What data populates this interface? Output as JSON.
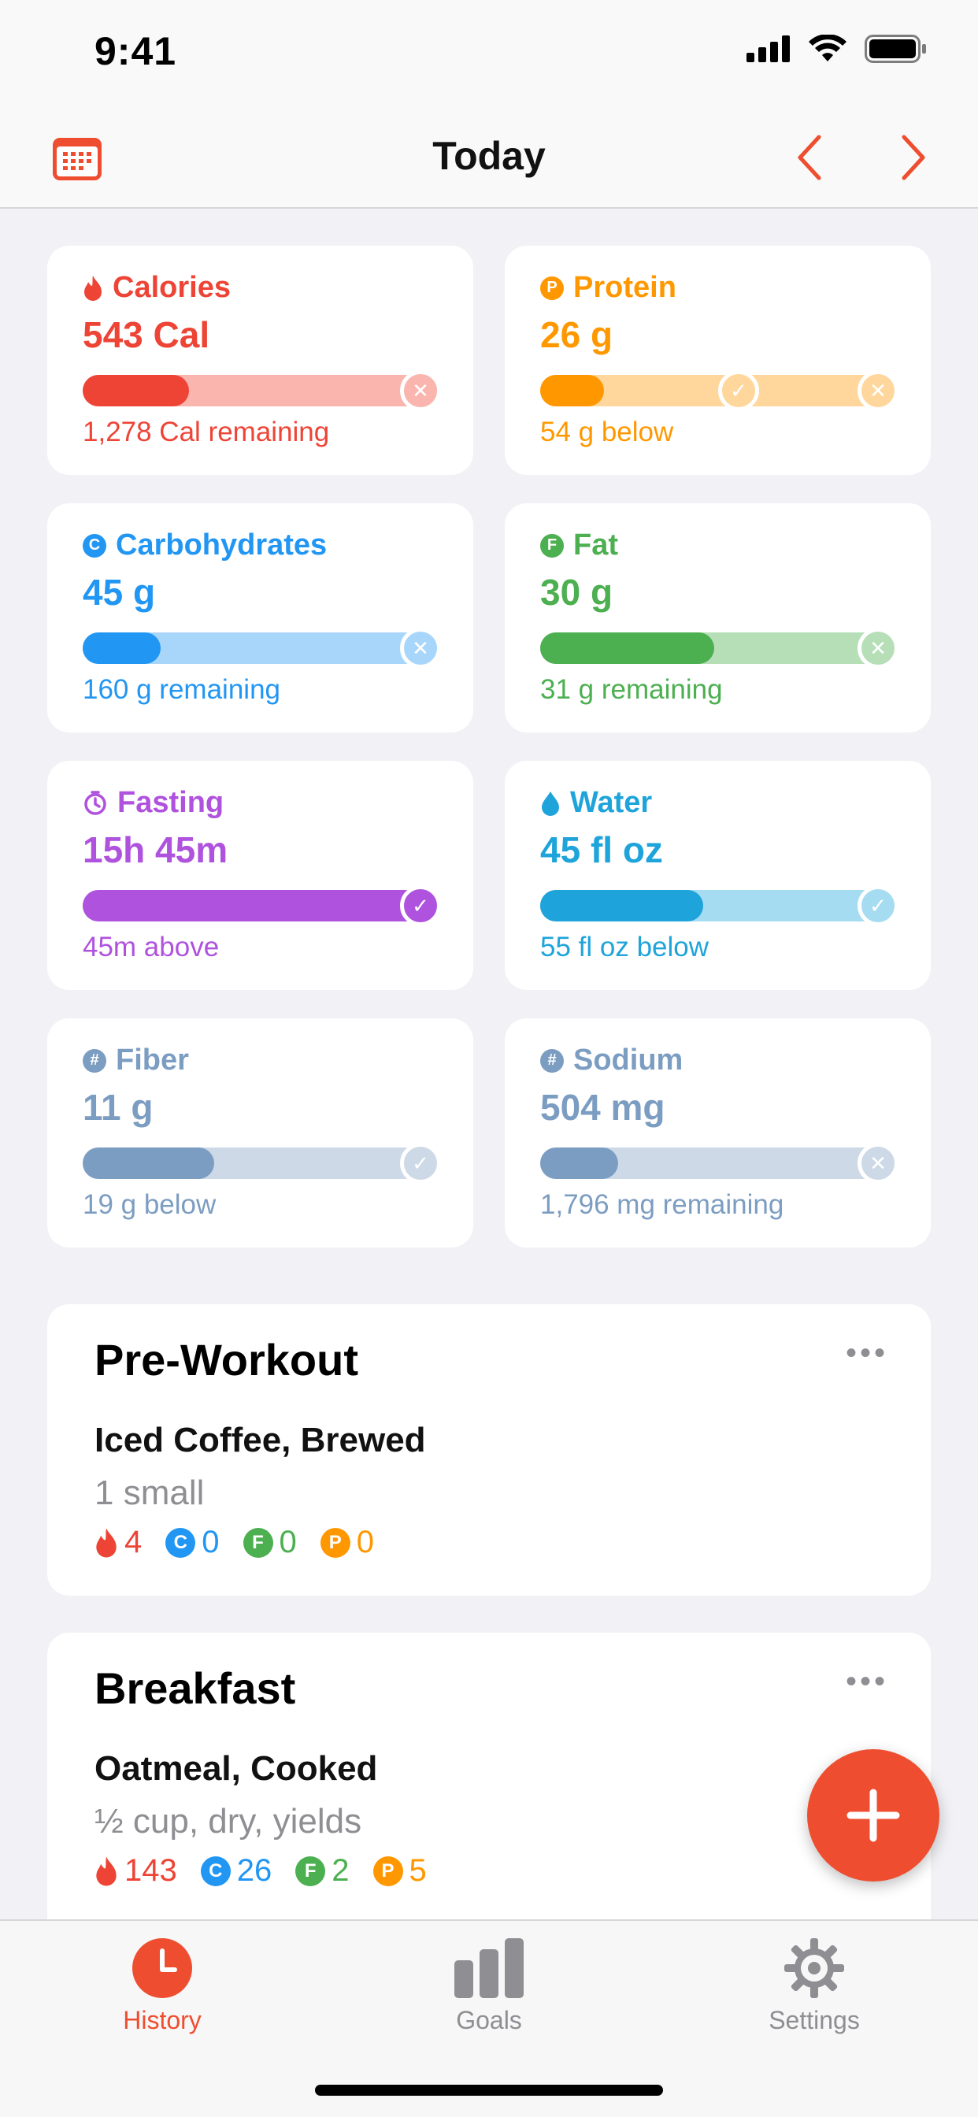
{
  "status_bar": {
    "time": "9:41"
  },
  "nav": {
    "title": "Today"
  },
  "colors": {
    "accent": "#EE4E2F",
    "calories": "#EE4436",
    "protein": "#FF9800",
    "carbs": "#2196F3",
    "fat": "#4CAF50",
    "fasting": "#AF52DE",
    "water": "#1EA4DA",
    "neutral": "#7C9DC2"
  },
  "stats": [
    {
      "key": "calories",
      "icon": "flame-icon",
      "label": "Calories",
      "value": "543 Cal",
      "sub": "1,278 Cal remaining",
      "progress": 0.3,
      "goal_marker": "x-mark"
    },
    {
      "key": "protein",
      "icon": "protein-badge-icon",
      "badge": "P",
      "label": "Protein",
      "value": "26 g",
      "sub": "54 g below",
      "progress": 0.18,
      "goal_marker": "x-mark",
      "min_marker": 0.56
    },
    {
      "key": "carbs",
      "icon": "carbs-badge-icon",
      "badge": "C",
      "label": "Carbohydrates",
      "value": "45 g",
      "sub": "160 g remaining",
      "progress": 0.22,
      "goal_marker": "x-mark"
    },
    {
      "key": "fat",
      "icon": "fat-badge-icon",
      "badge": "F",
      "label": "Fat",
      "value": "30 g",
      "sub": "31 g remaining",
      "progress": 0.49,
      "goal_marker": "x-mark"
    },
    {
      "key": "fasting",
      "icon": "timer-icon",
      "label": "Fasting",
      "value": "15h 45m",
      "sub": "45m above",
      "progress": 1.0,
      "goal_marker": "check-mark"
    },
    {
      "key": "water",
      "icon": "water-drop-icon",
      "label": "Water",
      "value": "45 fl oz",
      "sub": "55 fl oz below",
      "progress": 0.46,
      "goal_marker": "check-mark"
    },
    {
      "key": "fiber",
      "icon": "hash-badge-icon",
      "badge": "#",
      "label": "Fiber",
      "value": "11 g",
      "sub": "19 g below",
      "progress": 0.37,
      "goal_marker": "check-mark"
    },
    {
      "key": "sodium",
      "icon": "hash-badge-icon",
      "badge": "#",
      "label": "Sodium",
      "value": "504 mg",
      "sub": "1,796 mg remaining",
      "progress": 0.22,
      "goal_marker": "x-mark"
    }
  ],
  "meals": [
    {
      "title": "Pre-Workout",
      "food": "Iced Coffee, Brewed",
      "portion": "1 small",
      "macros": {
        "cal": "4",
        "carbs": "0",
        "fat": "0",
        "protein": "0"
      }
    },
    {
      "title": "Breakfast",
      "food": "Oatmeal, Cooked",
      "portion": "½ cup, dry, yields",
      "macros": {
        "cal": "143",
        "carbs": "26",
        "fat": "2",
        "protein": "5"
      }
    }
  ],
  "tabs": [
    {
      "label": "History",
      "icon": "clock-icon",
      "active": true
    },
    {
      "label": "Goals",
      "icon": "bar-chart-icon",
      "active": false
    },
    {
      "label": "Settings",
      "icon": "gear-icon",
      "active": false
    }
  ]
}
